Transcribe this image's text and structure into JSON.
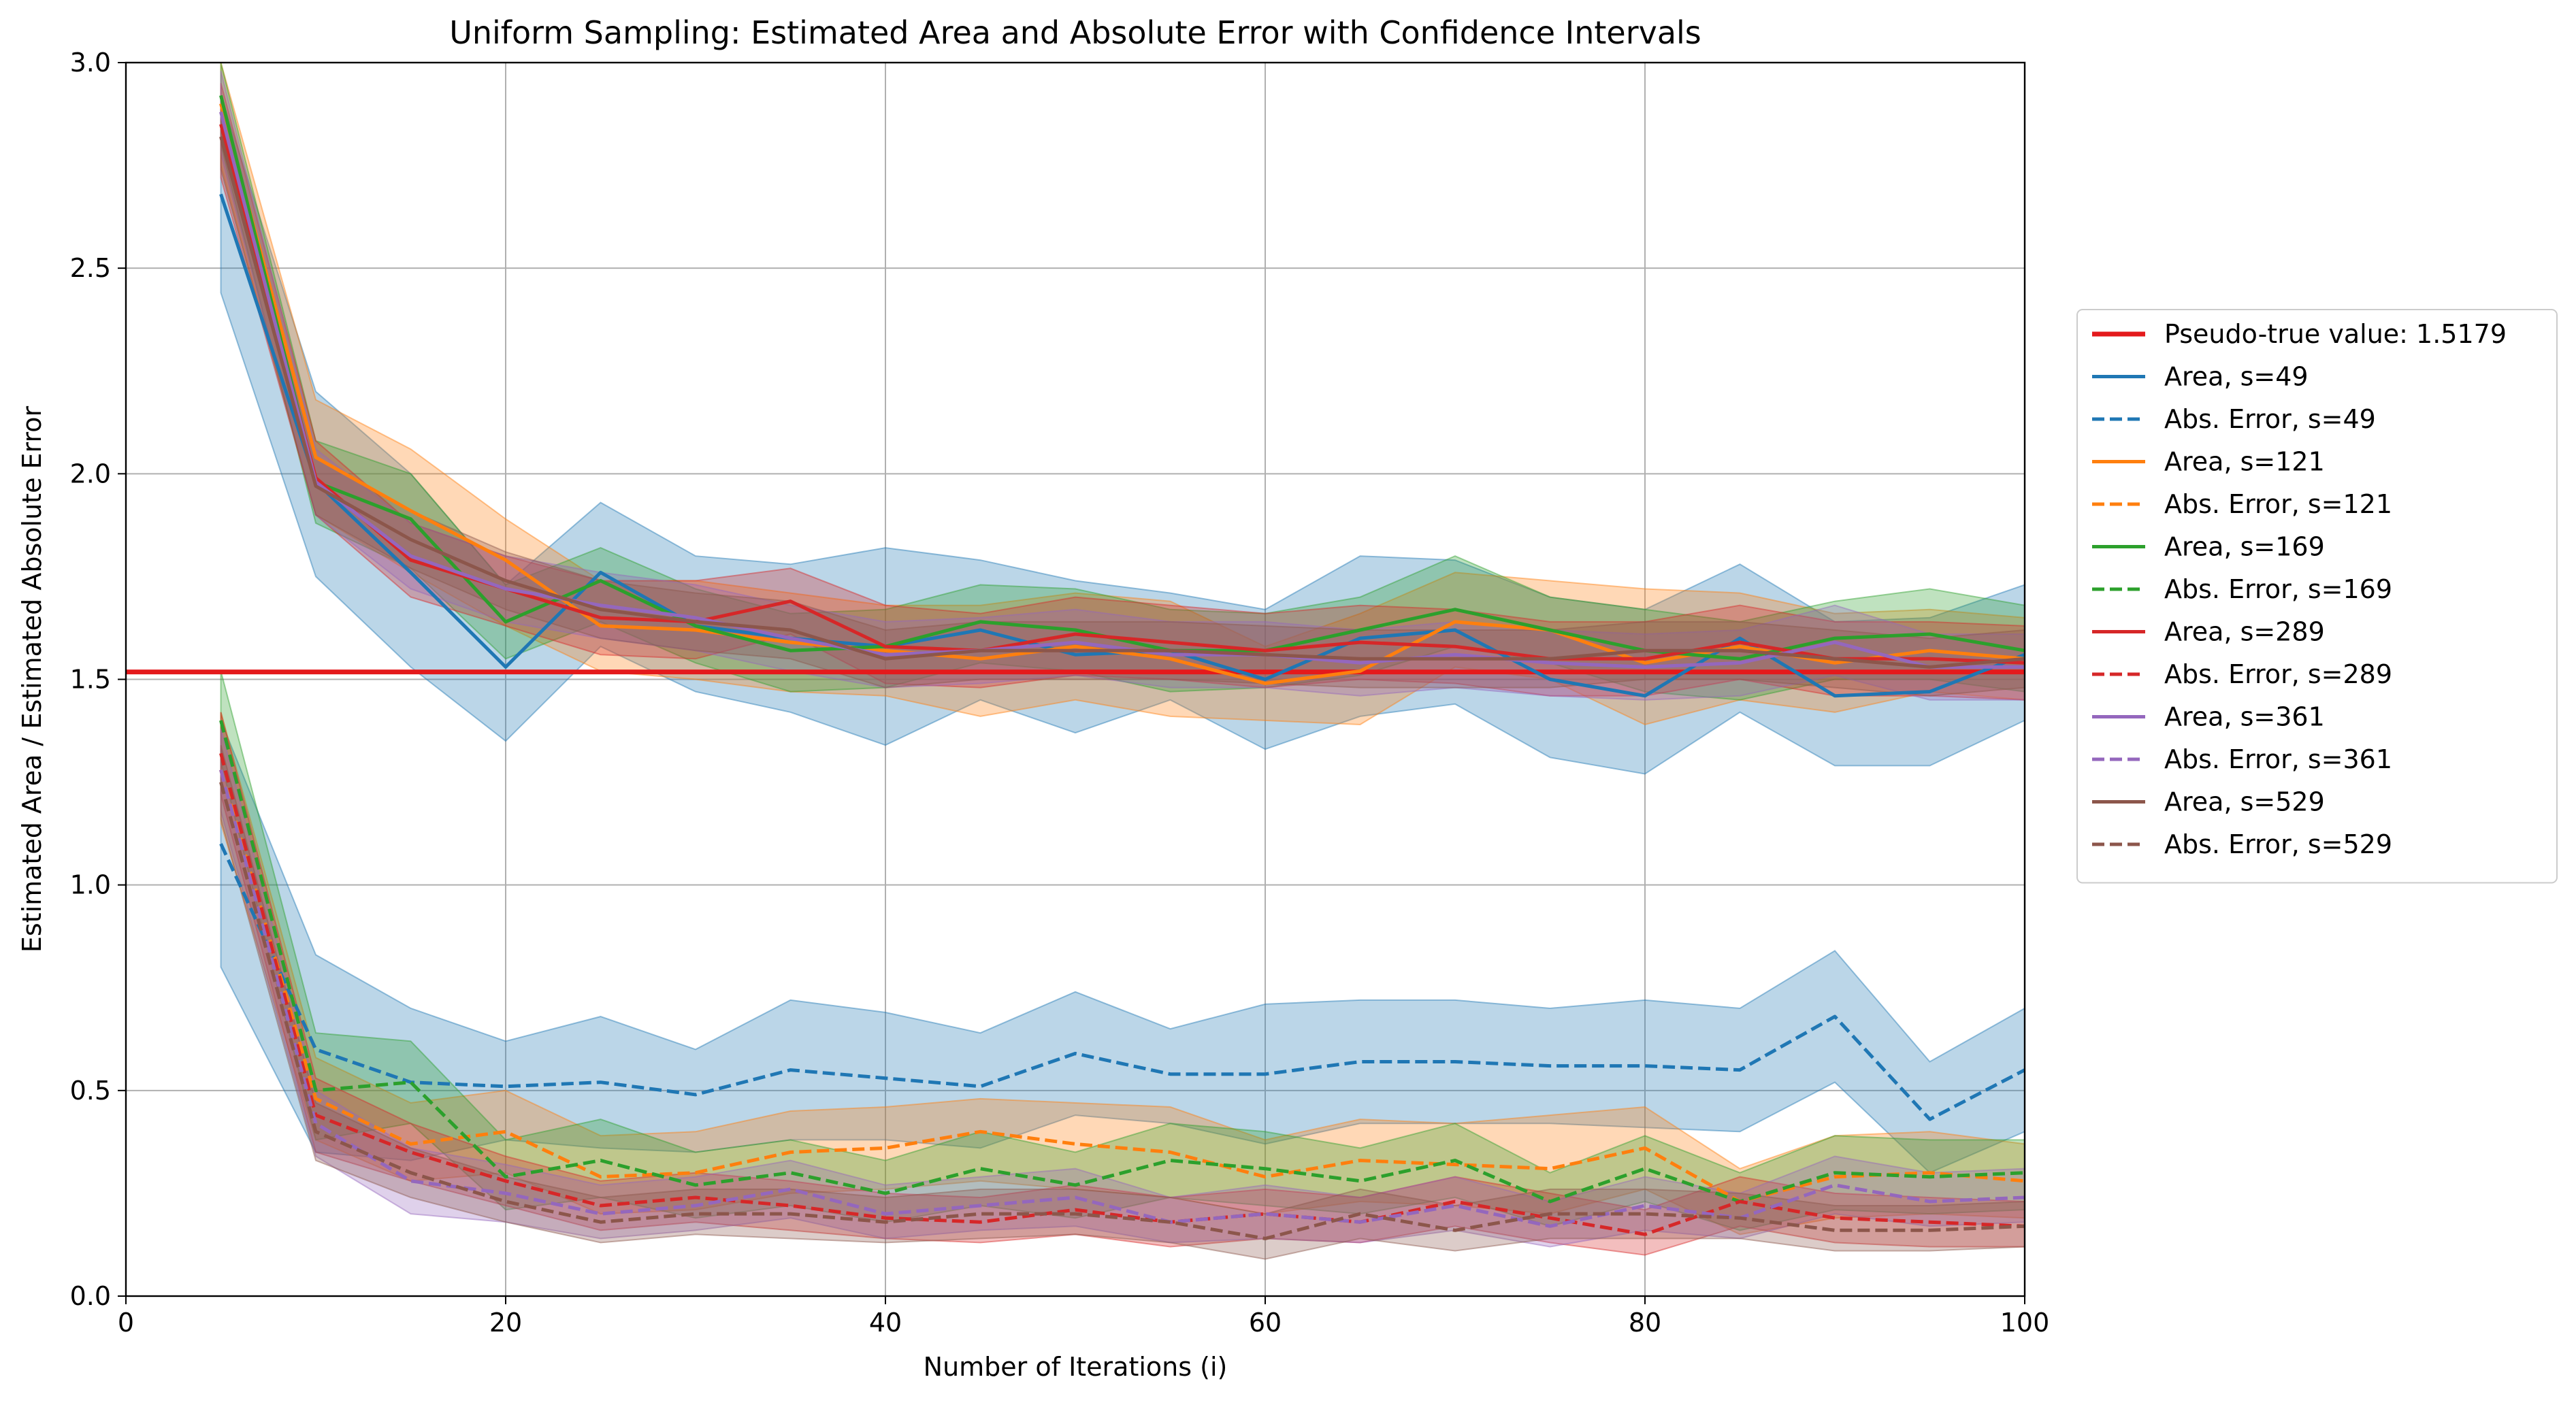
{
  "chart_data": {
    "type": "line",
    "title": "Uniform Sampling: Estimated Area and Absolute Error with Confidence Intervals",
    "xlabel": "Number of Iterations (i)",
    "ylabel": "Estimated Area / Estimated Absolute Error",
    "xlim": [
      0,
      100
    ],
    "ylim": [
      0.0,
      3.0
    ],
    "xticks": [
      "0",
      "20",
      "40",
      "60",
      "80",
      "100"
    ],
    "yticks": [
      "0.0",
      "0.5",
      "1.0",
      "1.5",
      "2.0",
      "2.5",
      "3.0"
    ],
    "grid": true,
    "legend_position": "outside-right",
    "x": [
      5,
      10,
      15,
      20,
      25,
      30,
      35,
      40,
      45,
      50,
      55,
      60,
      65,
      70,
      75,
      80,
      85,
      90,
      95,
      100
    ],
    "reference_line": {
      "label": "Pseudo-true value: 1.5179",
      "value": 1.5179,
      "color": "#e41a1c"
    },
    "series": [
      {
        "name": "Area, s=49",
        "color": "#1f77b4",
        "style": "solid",
        "values": [
          2.68,
          1.98,
          1.76,
          1.53,
          1.76,
          1.63,
          1.6,
          1.58,
          1.62,
          1.56,
          1.57,
          1.5,
          1.6,
          1.62,
          1.5,
          1.46,
          1.6,
          1.46,
          1.47,
          1.56
        ],
        "lower": [
          2.44,
          1.75,
          1.53,
          1.35,
          1.58,
          1.47,
          1.42,
          1.34,
          1.45,
          1.37,
          1.45,
          1.33,
          1.41,
          1.44,
          1.31,
          1.27,
          1.42,
          1.29,
          1.29,
          1.4
        ],
        "upper": [
          2.92,
          2.2,
          2.0,
          1.73,
          1.93,
          1.8,
          1.78,
          1.82,
          1.79,
          1.74,
          1.71,
          1.67,
          1.8,
          1.79,
          1.7,
          1.67,
          1.78,
          1.64,
          1.65,
          1.73
        ]
      },
      {
        "name": "Abs. Error, s=49",
        "color": "#1f77b4",
        "style": "dashed",
        "values": [
          1.1,
          0.6,
          0.52,
          0.51,
          0.52,
          0.49,
          0.55,
          0.53,
          0.51,
          0.59,
          0.54,
          0.54,
          0.57,
          0.57,
          0.56,
          0.56,
          0.55,
          0.68,
          0.43,
          0.55
        ],
        "lower": [
          0.8,
          0.35,
          0.33,
          0.38,
          0.36,
          0.35,
          0.38,
          0.38,
          0.36,
          0.44,
          0.42,
          0.37,
          0.42,
          0.42,
          0.42,
          0.41,
          0.4,
          0.52,
          0.3,
          0.4
        ],
        "upper": [
          1.4,
          0.83,
          0.7,
          0.62,
          0.68,
          0.6,
          0.72,
          0.69,
          0.64,
          0.74,
          0.65,
          0.71,
          0.72,
          0.72,
          0.7,
          0.72,
          0.7,
          0.84,
          0.57,
          0.7
        ]
      },
      {
        "name": "Area, s=121",
        "color": "#ff7f0e",
        "style": "solid",
        "values": [
          2.9,
          2.04,
          1.91,
          1.79,
          1.63,
          1.62,
          1.59,
          1.57,
          1.55,
          1.58,
          1.55,
          1.49,
          1.52,
          1.64,
          1.62,
          1.54,
          1.58,
          1.54,
          1.57,
          1.55
        ],
        "lower": [
          2.75,
          1.9,
          1.76,
          1.63,
          1.52,
          1.5,
          1.47,
          1.46,
          1.41,
          1.45,
          1.41,
          1.4,
          1.39,
          1.53,
          1.5,
          1.39,
          1.45,
          1.42,
          1.47,
          1.45
        ],
        "upper": [
          3.05,
          2.18,
          2.06,
          1.89,
          1.74,
          1.74,
          1.71,
          1.68,
          1.68,
          1.71,
          1.69,
          1.58,
          1.66,
          1.76,
          1.74,
          1.72,
          1.71,
          1.66,
          1.67,
          1.65
        ]
      },
      {
        "name": "Abs. Error, s=121",
        "color": "#ff7f0e",
        "style": "dashed",
        "values": [
          1.28,
          0.48,
          0.37,
          0.4,
          0.29,
          0.3,
          0.35,
          0.36,
          0.4,
          0.37,
          0.35,
          0.29,
          0.33,
          0.32,
          0.31,
          0.36,
          0.23,
          0.29,
          0.3,
          0.28
        ],
        "lower": [
          1.15,
          0.38,
          0.28,
          0.3,
          0.2,
          0.21,
          0.25,
          0.26,
          0.28,
          0.26,
          0.24,
          0.2,
          0.23,
          0.22,
          0.2,
          0.26,
          0.15,
          0.19,
          0.2,
          0.19
        ],
        "upper": [
          1.42,
          0.58,
          0.47,
          0.5,
          0.39,
          0.4,
          0.45,
          0.46,
          0.48,
          0.47,
          0.46,
          0.38,
          0.43,
          0.42,
          0.44,
          0.46,
          0.31,
          0.39,
          0.4,
          0.37
        ]
      },
      {
        "name": "Area, s=169",
        "color": "#2ca02c",
        "style": "solid",
        "values": [
          2.92,
          1.98,
          1.89,
          1.64,
          1.74,
          1.63,
          1.57,
          1.58,
          1.64,
          1.62,
          1.57,
          1.57,
          1.62,
          1.67,
          1.62,
          1.57,
          1.55,
          1.6,
          1.61,
          1.57
        ],
        "lower": [
          2.8,
          1.88,
          1.77,
          1.55,
          1.64,
          1.54,
          1.47,
          1.48,
          1.54,
          1.52,
          1.47,
          1.48,
          1.51,
          1.58,
          1.54,
          1.47,
          1.45,
          1.5,
          1.5,
          1.47
        ],
        "upper": [
          3.0,
          2.08,
          2.0,
          1.73,
          1.82,
          1.72,
          1.66,
          1.67,
          1.73,
          1.72,
          1.67,
          1.66,
          1.7,
          1.8,
          1.7,
          1.67,
          1.64,
          1.69,
          1.72,
          1.68
        ]
      },
      {
        "name": "Abs. Error, s=169",
        "color": "#2ca02c",
        "style": "dashed",
        "values": [
          1.4,
          0.5,
          0.52,
          0.29,
          0.33,
          0.27,
          0.3,
          0.25,
          0.31,
          0.27,
          0.33,
          0.31,
          0.28,
          0.33,
          0.23,
          0.31,
          0.23,
          0.3,
          0.29,
          0.3
        ],
        "lower": [
          1.3,
          0.38,
          0.42,
          0.21,
          0.24,
          0.19,
          0.22,
          0.18,
          0.22,
          0.19,
          0.24,
          0.22,
          0.2,
          0.24,
          0.17,
          0.23,
          0.16,
          0.21,
          0.2,
          0.21
        ],
        "upper": [
          1.52,
          0.64,
          0.62,
          0.38,
          0.43,
          0.35,
          0.38,
          0.33,
          0.4,
          0.35,
          0.42,
          0.4,
          0.36,
          0.42,
          0.3,
          0.39,
          0.3,
          0.39,
          0.38,
          0.38
        ]
      },
      {
        "name": "Area, s=289",
        "color": "#d62728",
        "style": "solid",
        "values": [
          2.85,
          1.99,
          1.79,
          1.72,
          1.65,
          1.64,
          1.69,
          1.58,
          1.57,
          1.61,
          1.59,
          1.57,
          1.59,
          1.58,
          1.55,
          1.55,
          1.59,
          1.55,
          1.55,
          1.54
        ],
        "lower": [
          2.72,
          1.9,
          1.7,
          1.63,
          1.56,
          1.55,
          1.61,
          1.49,
          1.48,
          1.51,
          1.5,
          1.48,
          1.5,
          1.49,
          1.46,
          1.46,
          1.5,
          1.46,
          1.46,
          1.45
        ],
        "upper": [
          2.95,
          2.08,
          1.88,
          1.8,
          1.74,
          1.74,
          1.77,
          1.68,
          1.66,
          1.7,
          1.68,
          1.66,
          1.68,
          1.67,
          1.64,
          1.64,
          1.68,
          1.64,
          1.64,
          1.63
        ]
      },
      {
        "name": "Abs. Error, s=289",
        "color": "#d62728",
        "style": "dashed",
        "values": [
          1.32,
          0.44,
          0.35,
          0.28,
          0.22,
          0.24,
          0.22,
          0.19,
          0.18,
          0.21,
          0.18,
          0.2,
          0.18,
          0.23,
          0.19,
          0.15,
          0.23,
          0.19,
          0.18,
          0.17
        ],
        "lower": [
          1.22,
          0.35,
          0.28,
          0.22,
          0.16,
          0.18,
          0.16,
          0.14,
          0.13,
          0.15,
          0.12,
          0.14,
          0.13,
          0.17,
          0.13,
          0.1,
          0.17,
          0.13,
          0.12,
          0.12
        ],
        "upper": [
          1.42,
          0.53,
          0.42,
          0.34,
          0.28,
          0.3,
          0.28,
          0.25,
          0.24,
          0.27,
          0.24,
          0.26,
          0.24,
          0.29,
          0.25,
          0.21,
          0.29,
          0.25,
          0.24,
          0.23
        ]
      },
      {
        "name": "Area, s=361",
        "color": "#9467bd",
        "style": "solid",
        "values": [
          2.88,
          1.98,
          1.8,
          1.72,
          1.68,
          1.65,
          1.6,
          1.56,
          1.57,
          1.59,
          1.56,
          1.56,
          1.54,
          1.56,
          1.54,
          1.53,
          1.54,
          1.59,
          1.53,
          1.53
        ],
        "lower": [
          2.78,
          1.9,
          1.72,
          1.64,
          1.6,
          1.57,
          1.52,
          1.48,
          1.49,
          1.51,
          1.48,
          1.48,
          1.46,
          1.48,
          1.46,
          1.45,
          1.46,
          1.51,
          1.45,
          1.45
        ],
        "upper": [
          2.98,
          2.06,
          1.88,
          1.8,
          1.76,
          1.73,
          1.68,
          1.64,
          1.65,
          1.67,
          1.64,
          1.64,
          1.62,
          1.64,
          1.62,
          1.61,
          1.62,
          1.68,
          1.61,
          1.61
        ]
      },
      {
        "name": "Abs. Error, s=361",
        "color": "#9467bd",
        "style": "dashed",
        "values": [
          1.28,
          0.42,
          0.28,
          0.25,
          0.2,
          0.22,
          0.26,
          0.2,
          0.22,
          0.24,
          0.18,
          0.2,
          0.18,
          0.22,
          0.17,
          0.22,
          0.19,
          0.27,
          0.23,
          0.24
        ],
        "lower": [
          1.18,
          0.34,
          0.2,
          0.18,
          0.14,
          0.16,
          0.19,
          0.14,
          0.16,
          0.17,
          0.13,
          0.14,
          0.13,
          0.16,
          0.12,
          0.16,
          0.14,
          0.2,
          0.17,
          0.18
        ],
        "upper": [
          1.38,
          0.5,
          0.36,
          0.32,
          0.27,
          0.29,
          0.33,
          0.27,
          0.29,
          0.31,
          0.24,
          0.27,
          0.24,
          0.29,
          0.23,
          0.29,
          0.25,
          0.34,
          0.3,
          0.31
        ]
      },
      {
        "name": "Area, s=529",
        "color": "#8c564b",
        "style": "solid",
        "values": [
          2.82,
          1.97,
          1.84,
          1.74,
          1.67,
          1.64,
          1.62,
          1.55,
          1.57,
          1.57,
          1.57,
          1.56,
          1.55,
          1.55,
          1.55,
          1.57,
          1.57,
          1.55,
          1.53,
          1.55
        ],
        "lower": [
          2.74,
          1.9,
          1.77,
          1.67,
          1.6,
          1.57,
          1.55,
          1.48,
          1.5,
          1.5,
          1.5,
          1.49,
          1.48,
          1.48,
          1.48,
          1.5,
          1.5,
          1.48,
          1.46,
          1.48
        ],
        "upper": [
          2.9,
          2.04,
          1.91,
          1.81,
          1.74,
          1.71,
          1.69,
          1.62,
          1.64,
          1.64,
          1.64,
          1.63,
          1.62,
          1.62,
          1.62,
          1.64,
          1.64,
          1.62,
          1.6,
          1.62
        ]
      },
      {
        "name": "Abs. Error, s=529",
        "color": "#8c564b",
        "style": "dashed",
        "values": [
          1.25,
          0.4,
          0.3,
          0.23,
          0.18,
          0.2,
          0.2,
          0.18,
          0.2,
          0.2,
          0.18,
          0.14,
          0.2,
          0.16,
          0.2,
          0.2,
          0.19,
          0.16,
          0.16,
          0.17
        ],
        "lower": [
          1.16,
          0.33,
          0.24,
          0.18,
          0.13,
          0.15,
          0.14,
          0.13,
          0.14,
          0.15,
          0.13,
          0.09,
          0.14,
          0.11,
          0.14,
          0.14,
          0.14,
          0.11,
          0.11,
          0.12
        ],
        "upper": [
          1.34,
          0.47,
          0.36,
          0.29,
          0.24,
          0.26,
          0.26,
          0.24,
          0.26,
          0.26,
          0.24,
          0.2,
          0.26,
          0.22,
          0.26,
          0.26,
          0.25,
          0.22,
          0.22,
          0.23
        ]
      }
    ]
  }
}
